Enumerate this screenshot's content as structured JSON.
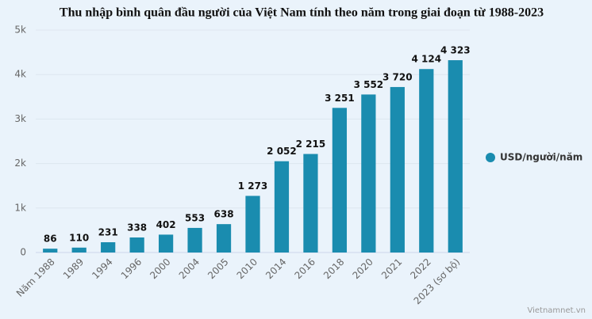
{
  "chart_data": {
    "type": "bar",
    "title": "Thu nhập bình quân đầu người của Việt Nam tính theo năm trong giai đoạn từ 1988-2023",
    "categories": [
      "Năm 1988",
      "1989",
      "1994",
      "1996",
      "2000",
      "2004",
      "2005",
      "2010",
      "2014",
      "2016",
      "2018",
      "2020",
      "2021",
      "2022",
      "2023 (sơ bộ)"
    ],
    "series": [
      {
        "name": "USD/người/năm",
        "color": "#1a8caf",
        "values": [
          86,
          110,
          231,
          338,
          402,
          553,
          638,
          1273,
          2052,
          2215,
          3251,
          3552,
          3720,
          4124,
          4323
        ],
        "value_labels": [
          "86",
          "110",
          "231",
          "338",
          "402",
          "553",
          "638",
          "1 273",
          "2 052",
          "2 215",
          "3 251",
          "3 552",
          "3 720",
          "4 124",
          "4 323"
        ]
      }
    ],
    "ylim": [
      0,
      5000
    ],
    "yticks": [
      0,
      {
        "value": 1000,
        "label": "1k"
      },
      {
        "value": 2000,
        "label": "2k"
      },
      {
        "value": 3000,
        "label": "3k"
      },
      {
        "value": 4000,
        "label": "4k"
      },
      {
        "value": 5000,
        "label": "5k"
      }
    ],
    "grid": true,
    "legend": "right",
    "source": "Vietnamnet.vn"
  }
}
